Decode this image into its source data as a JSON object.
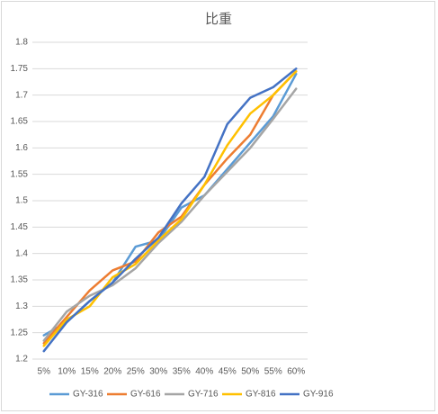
{
  "chart_data": {
    "type": "line",
    "title": "比重",
    "categories": [
      "5%",
      "10%",
      "15%",
      "20%",
      "25%",
      "30%",
      "35%",
      "40%",
      "45%",
      "50%",
      "55%",
      "60%"
    ],
    "series": [
      {
        "name": "GY-316",
        "color": "#5b9bd5",
        "values": [
          1.245,
          1.27,
          1.31,
          1.345,
          1.413,
          1.425,
          1.487,
          1.51,
          1.56,
          1.61,
          1.66,
          1.74
        ]
      },
      {
        "name": "GY-616",
        "color": "#ed7d31",
        "values": [
          1.23,
          1.28,
          1.33,
          1.368,
          1.385,
          1.44,
          1.47,
          1.53,
          1.58,
          1.625,
          1.7,
          1.745
        ]
      },
      {
        "name": "GY-716",
        "color": "#a5a5a5",
        "values": [
          1.235,
          1.29,
          1.32,
          1.34,
          1.372,
          1.42,
          1.46,
          1.51,
          1.555,
          1.6,
          1.655,
          1.712
        ]
      },
      {
        "name": "GY-816",
        "color": "#ffc000",
        "values": [
          1.225,
          1.275,
          1.3,
          1.355,
          1.38,
          1.425,
          1.465,
          1.53,
          1.605,
          1.665,
          1.7,
          1.745
        ]
      },
      {
        "name": "GY-916",
        "color": "#4472c4",
        "values": [
          1.215,
          1.27,
          1.31,
          1.345,
          1.39,
          1.43,
          1.495,
          1.545,
          1.645,
          1.695,
          1.715,
          1.75
        ]
      }
    ],
    "ylim": [
      1.2,
      1.8
    ],
    "yticks": [
      1.2,
      1.25,
      1.3,
      1.35,
      1.4,
      1.45,
      1.5,
      1.55,
      1.6,
      1.65,
      1.7,
      1.75,
      1.8
    ],
    "grid": true,
    "legend": "bottom"
  }
}
